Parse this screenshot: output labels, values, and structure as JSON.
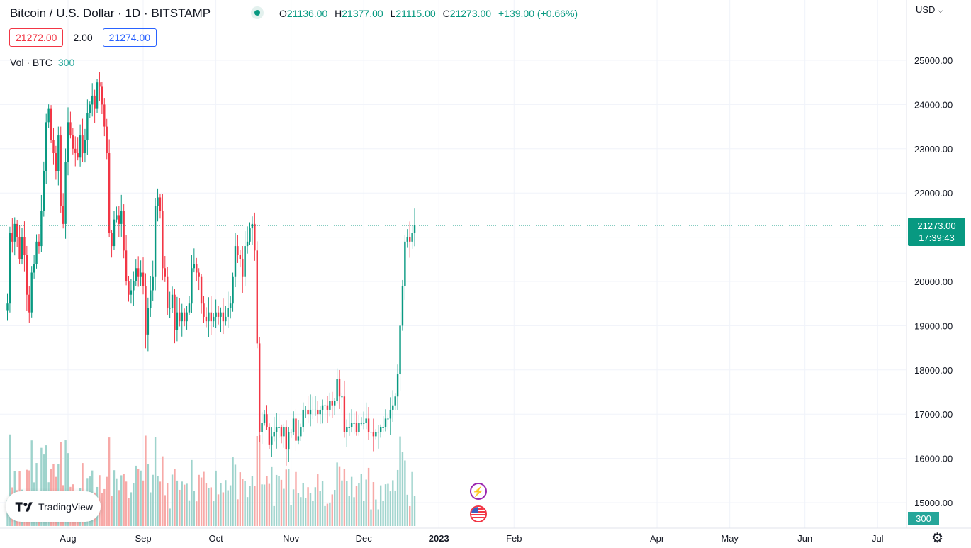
{
  "header": {
    "symbol_title": "Bitcoin / U.S. Dollar · 1D · BITSTAMP",
    "ohlc": [
      {
        "key": "O",
        "value": "21136.00"
      },
      {
        "key": "H",
        "value": "21377.00"
      },
      {
        "key": "L",
        "value": "21115.00"
      },
      {
        "key": "C",
        "value": "21273.00"
      }
    ],
    "change": "+139.00 (+0.66%)"
  },
  "quote": {
    "bid": "21272.00",
    "spread": "2.00",
    "ask": "21274.00"
  },
  "volume_legend": {
    "label": "Vol · BTC",
    "value": "300"
  },
  "price_scale": {
    "currency": "USD",
    "last_price": "21273.00",
    "countdown": "17:39:43",
    "volume_tag": "300"
  },
  "branding": {
    "logo_text": "TradingView"
  },
  "icons": {
    "event_1": "lightning-icon",
    "event_2": "us-flag-icon",
    "settings": "gear-icon"
  },
  "colors": {
    "up": "#089981",
    "down": "#f23645",
    "up_volume": "#9ed3cc",
    "down_volume": "#f7a9a7",
    "last_price": "#089981"
  },
  "chart_data": {
    "type": "candlestick",
    "title": "Bitcoin / U.S. Dollar · 1D · BITSTAMP",
    "ylim": [
      14600,
      25600
    ],
    "y_ticks": [
      15000,
      16000,
      17000,
      18000,
      19000,
      20000,
      21000,
      22000,
      23000,
      24000,
      25000
    ],
    "y_tick_labels": [
      "15000.00",
      "16000.00",
      "17000.00",
      "18000.00",
      "19000.00",
      "20000.00",
      "21000.00",
      "22000.00",
      "23000.00",
      "24000.00",
      "25000.00"
    ],
    "x_labels": [
      {
        "label": "Aug",
        "day": 0
      },
      {
        "label": "Sep",
        "day": 31
      },
      {
        "label": "Oct",
        "day": 61
      },
      {
        "label": "Nov",
        "day": 92
      },
      {
        "label": "Dec",
        "day": 122
      },
      {
        "label": "2023",
        "day": 153
      },
      {
        "label": "Feb",
        "day": 184
      },
      {
        "label": "Apr",
        "day": 243
      },
      {
        "label": "May",
        "day": 273
      },
      {
        "label": "Jun",
        "day": 304
      },
      {
        "label": "Jul",
        "day": 334
      }
    ],
    "first_day_offset": -25,
    "closes": [
      19500,
      21100,
      20900,
      21300,
      21000,
      20500,
      21000,
      20600,
      19700,
      19300,
      20200,
      20400,
      20900,
      20800,
      21600,
      22500,
      23600,
      23900,
      23200,
      22900,
      22500,
      23300,
      21700,
      21300,
      22700,
      23600,
      23300,
      23000,
      22900,
      22800,
      23300,
      22900,
      23200,
      23800,
      24000,
      24200,
      23900,
      24500,
      24400,
      24000,
      23500,
      22900,
      21100,
      20800,
      21400,
      21500,
      21300,
      21600,
      20700,
      20000,
      19700,
      19800,
      20000,
      20300,
      20100,
      20200,
      19900,
      18800,
      19400,
      19800,
      20100,
      21700,
      21900,
      21600,
      20300,
      20100,
      19400,
      19400,
      19700,
      18900,
      19300,
      19100,
      19300,
      19100,
      19300,
      19500,
      20300,
      20400,
      20200,
      20100,
      19500,
      19200,
      19100,
      19300,
      19100,
      19200,
      19300,
      19200,
      19300,
      19100,
      19200,
      19400,
      19500,
      20100,
      20800,
      20600,
      20500,
      20100,
      20800,
      20900,
      21200,
      21300,
      20700,
      18600,
      16600,
      16800,
      17000,
      16700,
      16300,
      16500,
      16600,
      16700,
      16700,
      16500,
      16700,
      16200,
      16600,
      16600,
      16900,
      16400,
      16500,
      16700,
      17100,
      17100,
      17000,
      17100,
      17100,
      17100,
      17000,
      17100,
      17200,
      17200,
      17100,
      17300,
      17200,
      17300,
      17800,
      17400,
      17400,
      16600,
      16700,
      16700,
      16800,
      16800,
      16600,
      16800,
      16800,
      16800,
      16900,
      16600,
      16600,
      16500,
      16600,
      16600,
      16700,
      16700,
      16900,
      16900,
      17100,
      17200,
      17400,
      17900,
      19000,
      19900,
      20900,
      21000,
      20900,
      21100,
      21273
    ],
    "volume_ylim": [
      0,
      4000
    ]
  }
}
